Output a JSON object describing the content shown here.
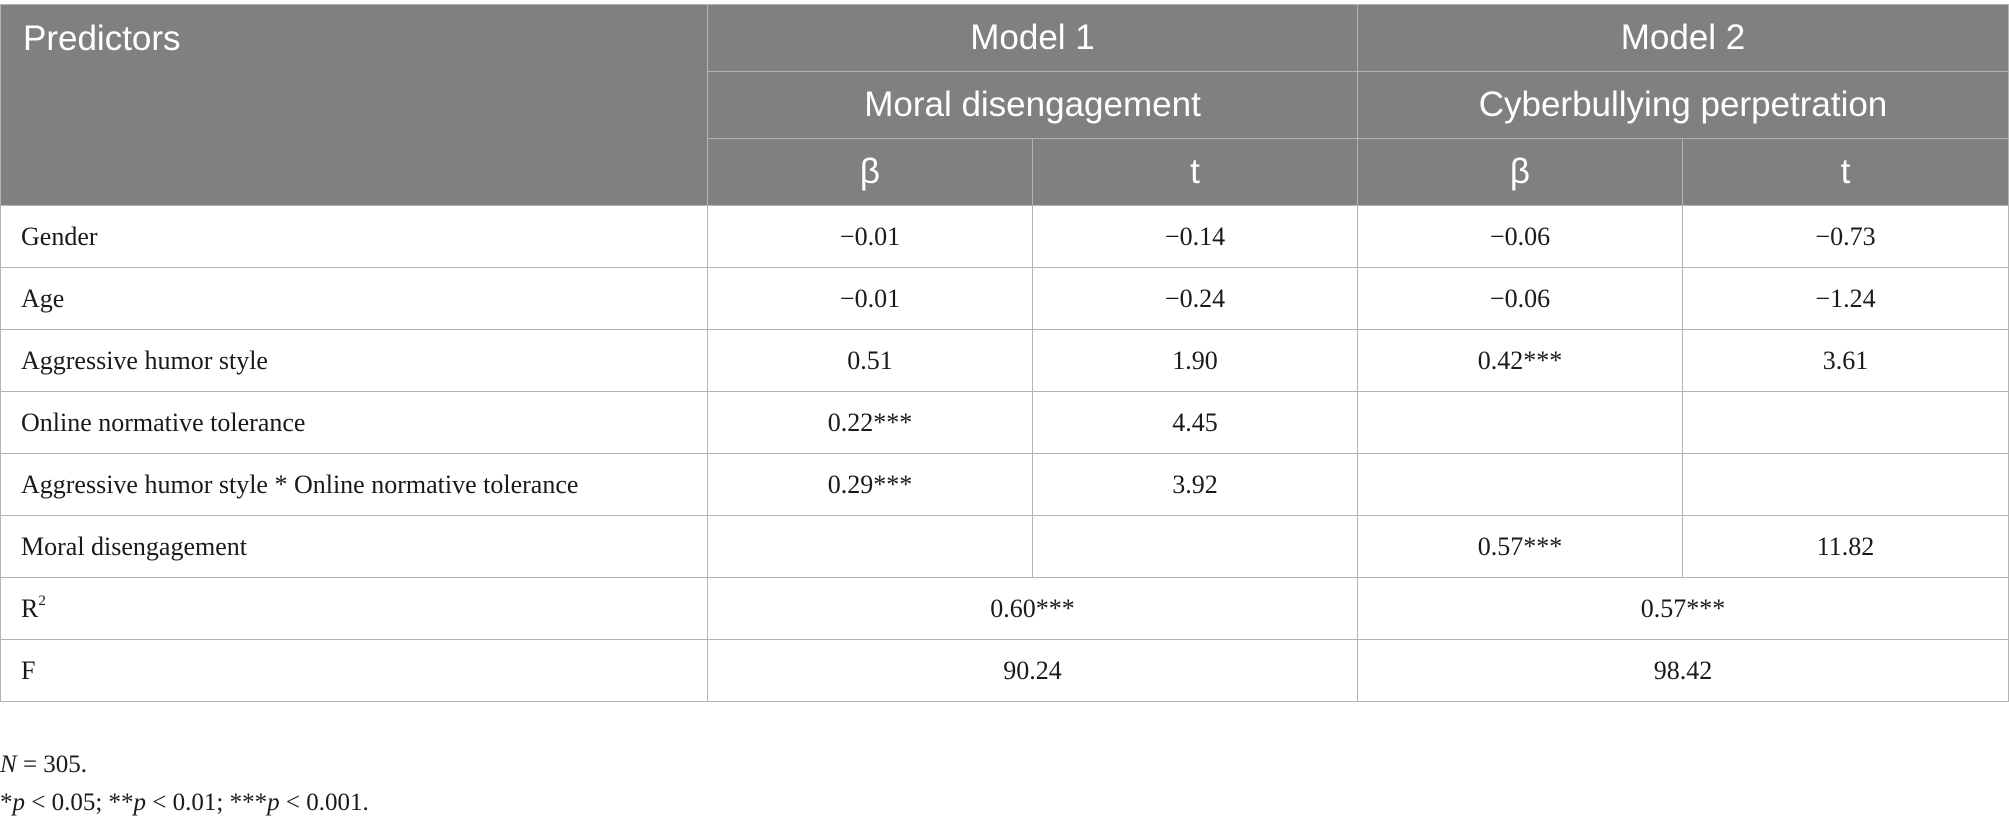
{
  "header": {
    "predictors": "Predictors",
    "model1": {
      "title": "Model 1",
      "outcome": "Moral disengagement",
      "beta": "β",
      "t": "t"
    },
    "model2": {
      "title": "Model 2",
      "outcome": "Cyberbullying perpetration",
      "beta": "β",
      "t": "t"
    }
  },
  "rows": [
    {
      "label": "Gender",
      "m1_beta": "−0.01",
      "m1_t": "−0.14",
      "m2_beta": "−0.06",
      "m2_t": "−0.73"
    },
    {
      "label": "Age",
      "m1_beta": "−0.01",
      "m1_t": "−0.24",
      "m2_beta": "−0.06",
      "m2_t": "−1.24"
    },
    {
      "label": "Aggressive humor style",
      "m1_beta": "0.51",
      "m1_t": "1.90",
      "m2_beta": "0.42***",
      "m2_t": "3.61"
    },
    {
      "label": "Online normative tolerance",
      "m1_beta": "0.22***",
      "m1_t": "4.45",
      "m2_beta": "",
      "m2_t": ""
    },
    {
      "label": "Aggressive humor style * Online normative tolerance",
      "m1_beta": "0.29***",
      "m1_t": "3.92",
      "m2_beta": "",
      "m2_t": ""
    },
    {
      "label": "Moral disengagement",
      "m1_beta": "",
      "m1_t": "",
      "m2_beta": "0.57***",
      "m2_t": "11.82"
    }
  ],
  "summary": {
    "r2": {
      "label": "R",
      "label_sup": "2",
      "m1": "0.60***",
      "m2": "0.57***"
    },
    "f": {
      "label": "F",
      "m1": "90.24",
      "m2": "98.42"
    }
  },
  "notes": {
    "n_label": "N",
    "n_value": " = 305.",
    "sig": {
      "s1_stars": "*",
      "s1_rest": " < 0.05; ",
      "s2_stars": "**",
      "s2_rest": " < 0.01; ",
      "s3_stars": "***",
      "s3_rest": " < 0.001.",
      "p": "p"
    }
  }
}
